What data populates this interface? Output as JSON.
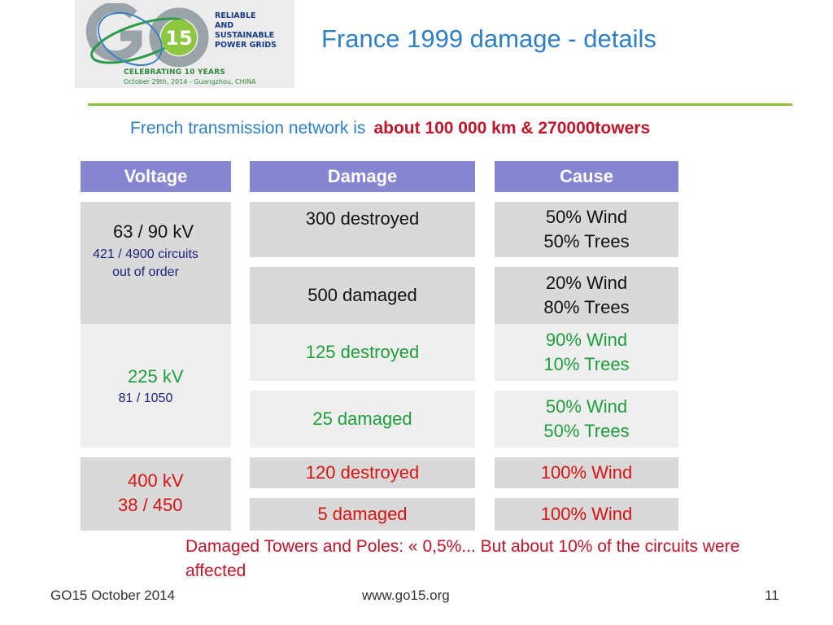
{
  "logo": {
    "letters": "G",
    "number": "15",
    "lines": [
      "RELIABLE",
      "AND",
      "SUSTAINABLE",
      "POWER GRIDS"
    ],
    "celebrating": "CELEBRATING 10 YEARS",
    "date": "October 29th, 2014 - Guangzhou, CHINA"
  },
  "title": "France 1999 damage - details",
  "subtitle": {
    "lead": "French transmission network is",
    "highlight": "about 100 000 km & 270000towers"
  },
  "table": {
    "headers": [
      "Voltage",
      "Damage",
      "Cause"
    ],
    "voltage_groups": [
      {
        "kv": "63 / 90 kV",
        "sub1": "421 / 4900 circuits",
        "sub2": "out of order"
      },
      {
        "kv": "225 kV",
        "sub1": "81 / 1050"
      },
      {
        "kv": "400 kV",
        "sub1": "38 / 450"
      }
    ],
    "rows": [
      {
        "damage": "300 destroyed",
        "cause1": "50% Wind",
        "cause2": "50% Trees"
      },
      {
        "damage": "500 damaged",
        "cause1": "20% Wind",
        "cause2": "80% Trees"
      },
      {
        "damage": "125 destroyed",
        "cause1": "90% Wind",
        "cause2": "10% Trees"
      },
      {
        "damage": "25 damaged",
        "cause1": "50% Wind",
        "cause2": "50% Trees"
      },
      {
        "damage": "120 destroyed",
        "cause1": "100% Wind"
      },
      {
        "damage": "5 damaged",
        "cause1": "100% Wind"
      }
    ]
  },
  "note": "Damaged Towers and Poles:  « 0,5%... But about 10% of the circuits were affected",
  "footer": {
    "left": "GO15 October 2014",
    "center": "www.go15.org",
    "page": "11"
  },
  "colors": {
    "header_bg": "#8585d0",
    "title_blue": "#2f7fc4",
    "accent_red": "#c0152a",
    "green": "#1e9e3a",
    "rule_green": "#8fbf3a"
  }
}
